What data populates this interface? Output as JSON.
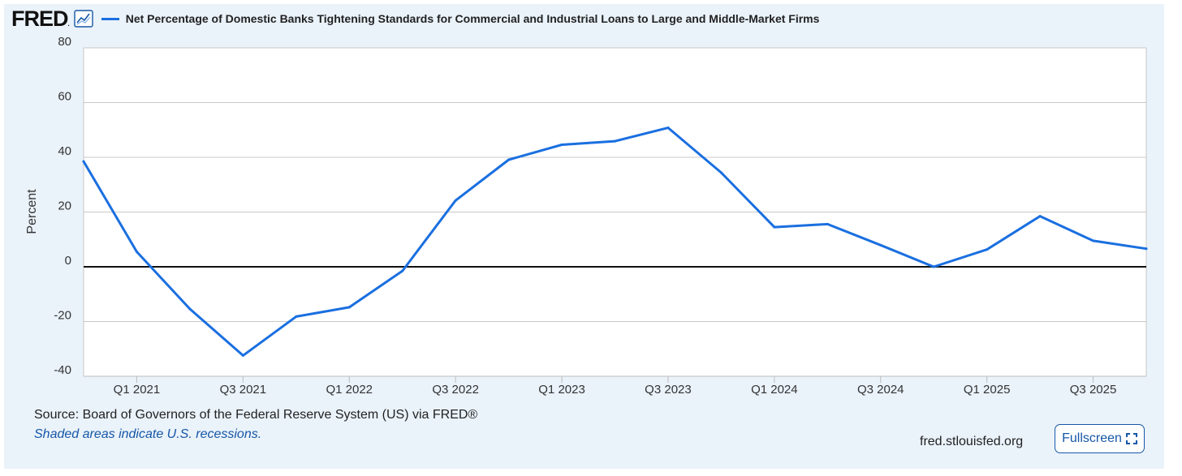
{
  "header": {
    "logo_text": "FRED",
    "logo_icon": "line-chart-icon",
    "series_title": "Net Percentage of Domestic Banks Tightening Standards for Commercial and Industrial Loans to Large and Middle-Market Firms"
  },
  "chart_data": {
    "type": "line",
    "title": "Net Percentage of Domestic Banks Tightening Standards for Commercial and Industrial Loans to Large and Middle-Market Firms",
    "xlabel": "",
    "ylabel": "Percent",
    "ylim": [
      -40,
      80
    ],
    "yticks": [
      80,
      60,
      40,
      20,
      0,
      -20,
      -40
    ],
    "x_tick_labels": [
      "Q1 2021",
      "Q3 2021",
      "Q1 2022",
      "Q3 2022",
      "Q1 2023",
      "Q3 2023",
      "Q1 2024",
      "Q3 2024",
      "Q1 2025",
      "Q3 2025"
    ],
    "x": [
      "Q4 2020",
      "Q1 2021",
      "Q2 2021",
      "Q3 2021",
      "Q4 2021",
      "Q1 2022",
      "Q2 2022",
      "Q3 2022",
      "Q4 2022",
      "Q1 2023",
      "Q2 2023",
      "Q3 2023",
      "Q4 2023",
      "Q1 2024",
      "Q2 2024",
      "Q3 2024",
      "Q4 2024",
      "Q1 2025",
      "Q2 2025",
      "Q3 2025",
      "Q4 2025"
    ],
    "series": [
      {
        "name": "Net Percentage of Domestic Banks Tightening Standards for Commercial and Industrial Loans to Large and Middle-Market Firms",
        "color": "#1a6fe0",
        "values": [
          38.5,
          5.5,
          -15.4,
          -32.4,
          -18.2,
          -14.8,
          -1.5,
          24.2,
          39.1,
          44.6,
          45.9,
          50.8,
          34.4,
          14.5,
          15.6,
          7.9,
          0.0,
          6.3,
          18.5,
          9.5,
          6.6
        ]
      }
    ],
    "zero_line": true,
    "grid": "horizontal",
    "recessions_shaded": false
  },
  "footer": {
    "source": "Source: Board of Governors of the Federal Reserve System (US) via FRED®",
    "note": "Shaded areas indicate U.S. recessions.",
    "site": "fred.stlouisfed.org",
    "fullscreen_label": "Fullscreen",
    "fullscreen_icon": "expand-icon"
  }
}
